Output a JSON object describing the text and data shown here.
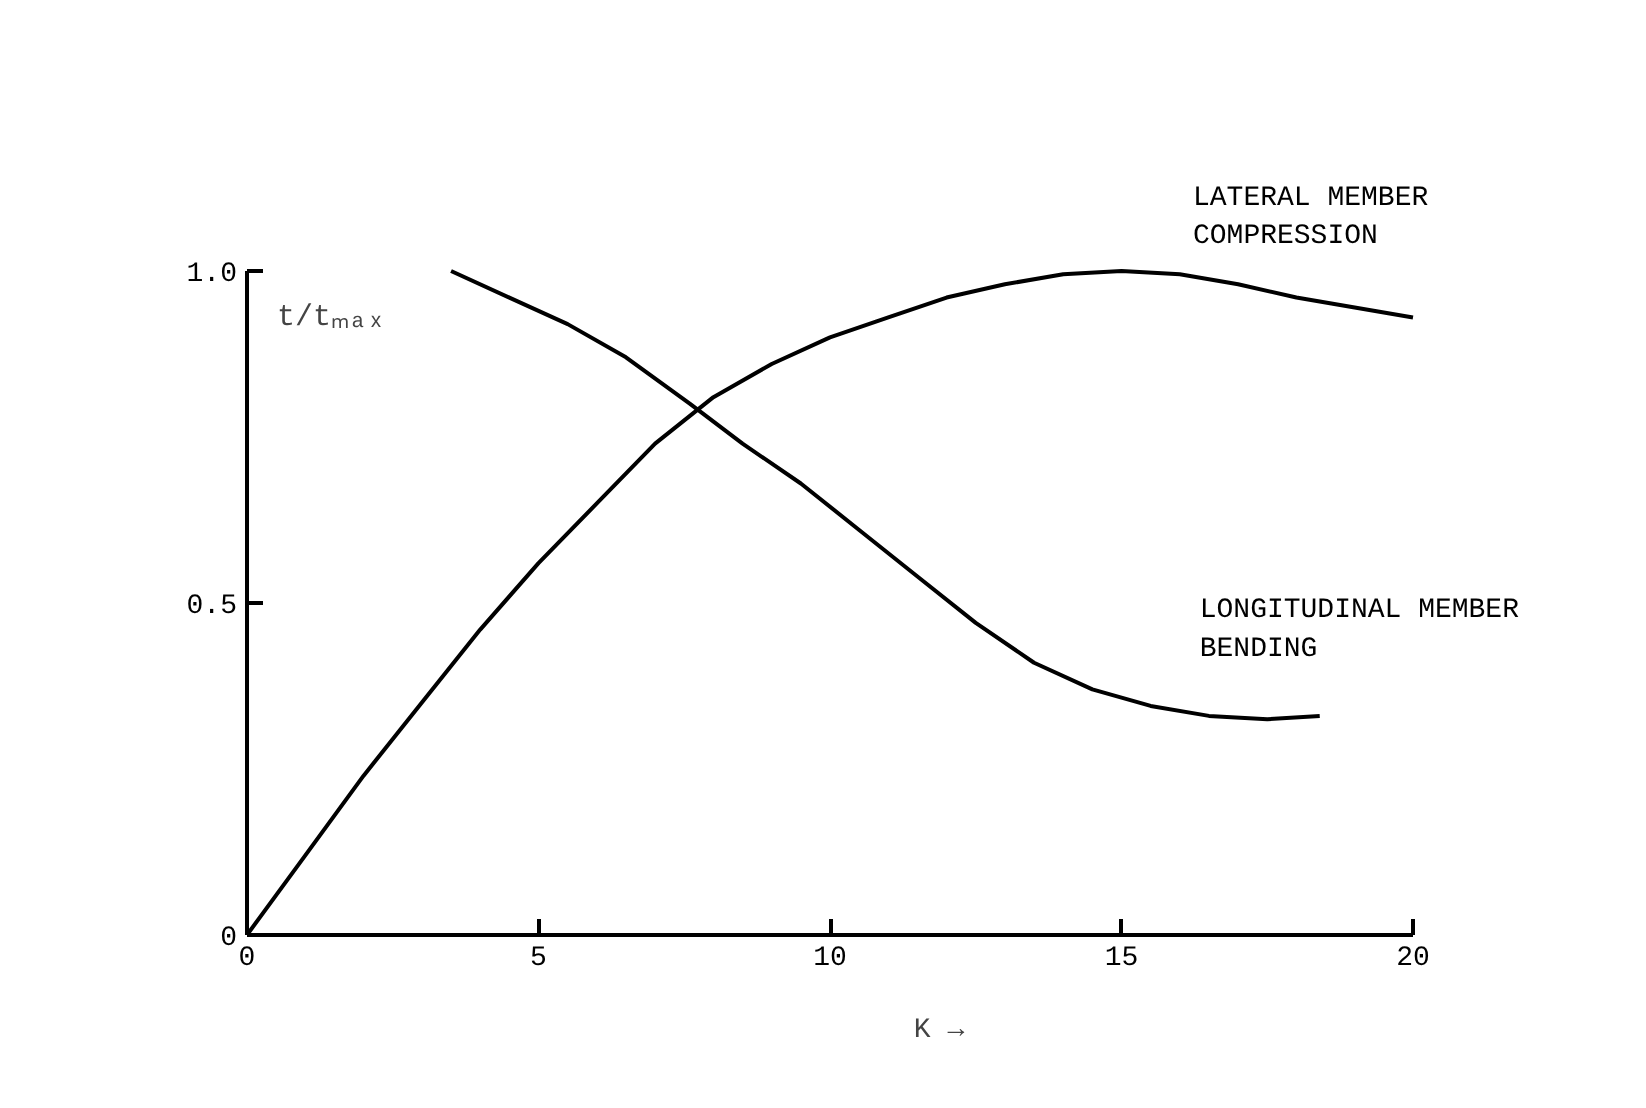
{
  "chart_data": {
    "type": "line",
    "xlabel": "K →",
    "ylabel": "t/tₘₐₓ",
    "xlim": [
      0,
      20
    ],
    "ylim": [
      0,
      1.0
    ],
    "xticks": [
      0,
      5,
      10,
      15,
      20
    ],
    "yticks": [
      0,
      {
        "value": 0.5,
        "label": "0.5"
      },
      {
        "value": 1.0,
        "label": "1.0"
      }
    ],
    "grid": false,
    "legend": false,
    "marker": "none",
    "line_style": "solid",
    "series": [
      {
        "name": "LATERAL MEMBER\nCOMPRESSION",
        "color": "#000000",
        "x": [
          0,
          1,
          2,
          3,
          4,
          5,
          6,
          7,
          8,
          9,
          10,
          11,
          12,
          13,
          14,
          15,
          16,
          17,
          18,
          19,
          20
        ],
        "values": [
          0,
          0.12,
          0.24,
          0.35,
          0.46,
          0.56,
          0.65,
          0.74,
          0.81,
          0.86,
          0.9,
          0.93,
          0.96,
          0.98,
          0.995,
          1.0,
          0.995,
          0.98,
          0.96,
          0.945,
          0.93
        ]
      },
      {
        "name": "LONGITUDINAL MEMBER\nBENDING",
        "color": "#000000",
        "x": [
          3.5,
          4.5,
          5.5,
          6.5,
          7.6,
          8.5,
          9.5,
          10.5,
          11.5,
          12.5,
          13.5,
          14.5,
          15.5,
          16.5,
          17.5,
          18.4
        ],
        "values": [
          1.0,
          0.96,
          0.92,
          0.87,
          0.8,
          0.74,
          0.68,
          0.61,
          0.54,
          0.47,
          0.41,
          0.37,
          0.345,
          0.33,
          0.325,
          0.33
        ]
      }
    ]
  }
}
